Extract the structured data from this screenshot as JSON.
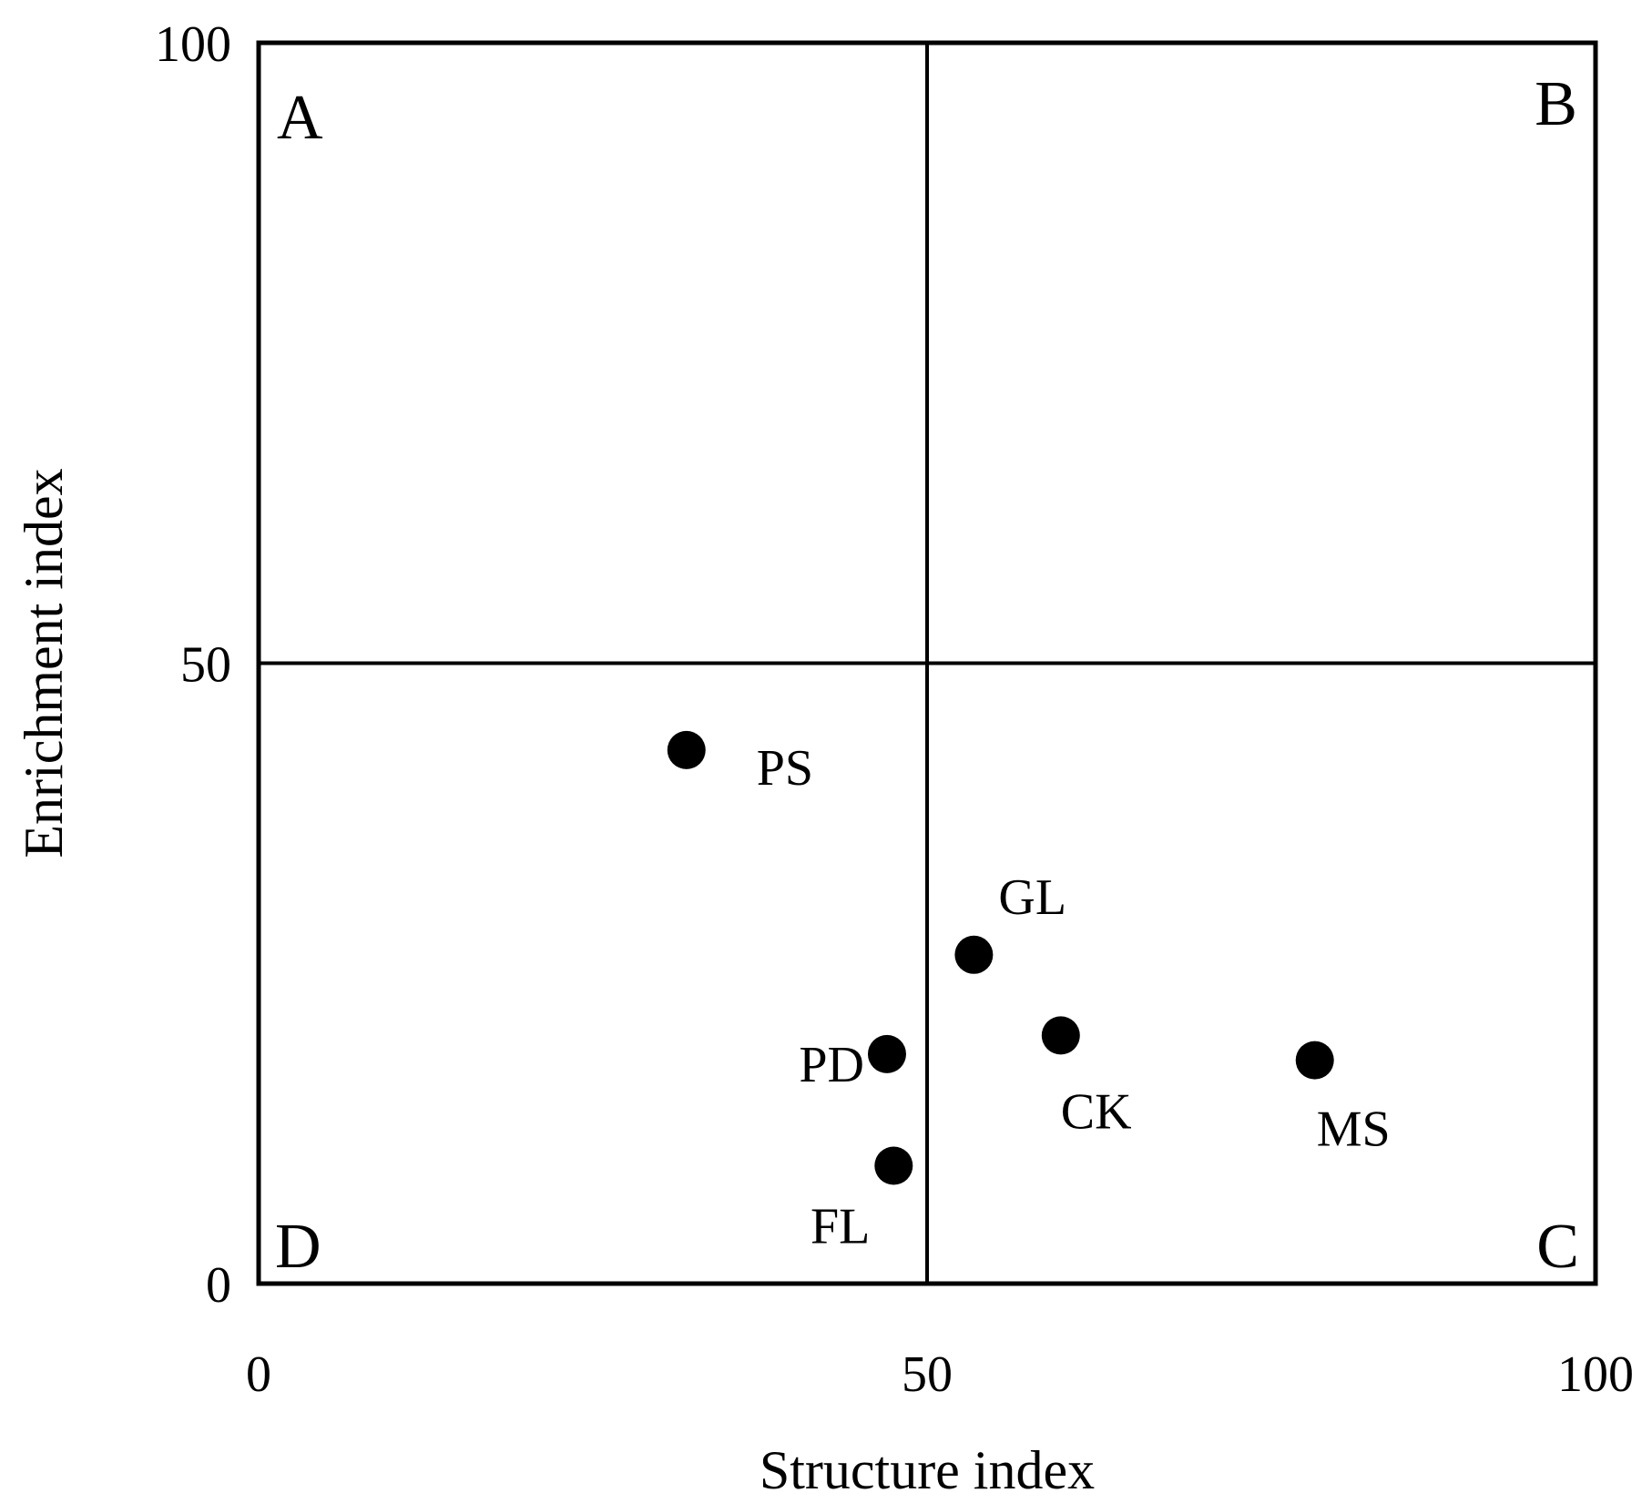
{
  "chart_data": {
    "type": "scatter",
    "xlabel": "Structure index",
    "ylabel": "Enrichment index",
    "xlim": [
      0,
      100
    ],
    "ylim": [
      0,
      100
    ],
    "x_ticks": [
      "0",
      "50",
      "100"
    ],
    "y_ticks": [
      "0",
      "50",
      "100"
    ],
    "quadrant_dividers": {
      "x": 50,
      "y": 50
    },
    "quadrants": {
      "top_left": "A",
      "top_right": "B",
      "bottom_right": "C",
      "bottom_left": "D"
    },
    "grid": false,
    "marker_color": "#000000",
    "points": [
      {
        "label": "PS",
        "x": 32,
        "y": 43
      },
      {
        "label": "GL",
        "x": 53.5,
        "y": 26.5
      },
      {
        "label": "CK",
        "x": 60,
        "y": 20
      },
      {
        "label": "PD",
        "x": 47,
        "y": 18.5
      },
      {
        "label": "MS",
        "x": 79,
        "y": 18
      },
      {
        "label": "FL",
        "x": 47.5,
        "y": 9.5
      }
    ]
  }
}
